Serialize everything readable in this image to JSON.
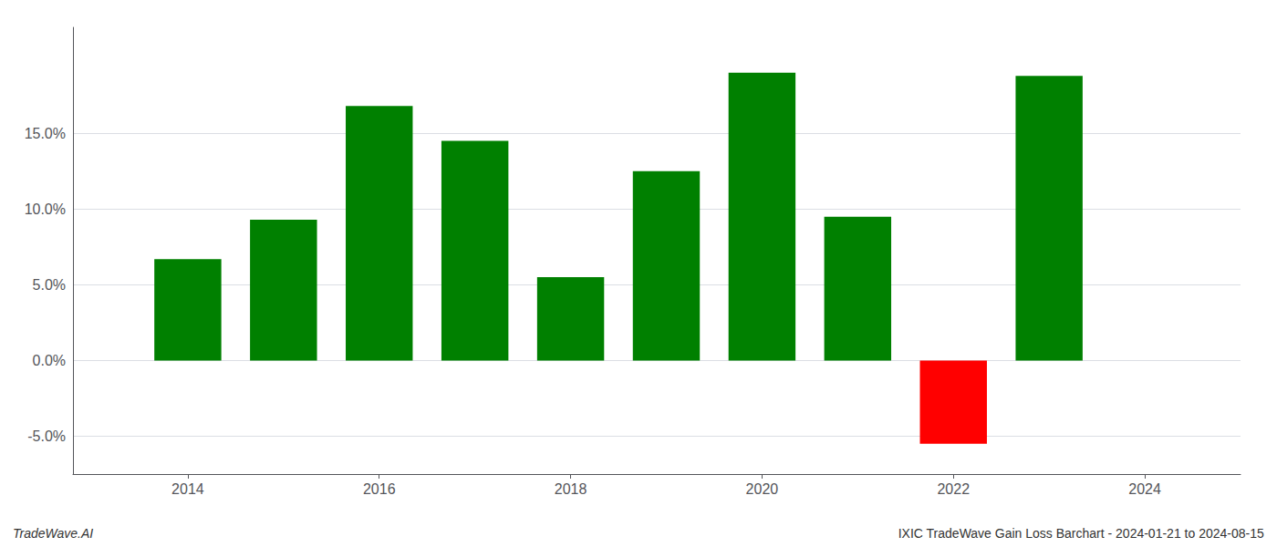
{
  "chart_data": {
    "type": "bar",
    "x": [
      2014,
      2015,
      2016,
      2017,
      2018,
      2019,
      2020,
      2021,
      2022,
      2023
    ],
    "values": [
      6.7,
      9.3,
      16.8,
      14.5,
      5.5,
      12.5,
      19.0,
      9.5,
      -5.5,
      18.8
    ],
    "colors": [
      "#008000",
      "#008000",
      "#008000",
      "#008000",
      "#008000",
      "#008000",
      "#008000",
      "#008000",
      "#ff0000",
      "#008000"
    ],
    "xlim": [
      2012.8,
      2025.0
    ],
    "xticks": [
      2014,
      2016,
      2018,
      2020,
      2022,
      2024
    ],
    "ylim": [
      -7.5,
      22.0
    ],
    "yticks": [
      {
        "value": -5.0,
        "label": "-5.0%"
      },
      {
        "value": 0.0,
        "label": "0.0%"
      },
      {
        "value": 5.0,
        "label": "5.0%"
      },
      {
        "value": 10.0,
        "label": "10.0%"
      },
      {
        "value": 15.0,
        "label": "15.0%"
      }
    ],
    "grid": true,
    "annotations": [
      "TradeWave.AI",
      "IXIC TradeWave Gain Loss Barchart - 2024-01-21 to 2024-08-15"
    ]
  }
}
